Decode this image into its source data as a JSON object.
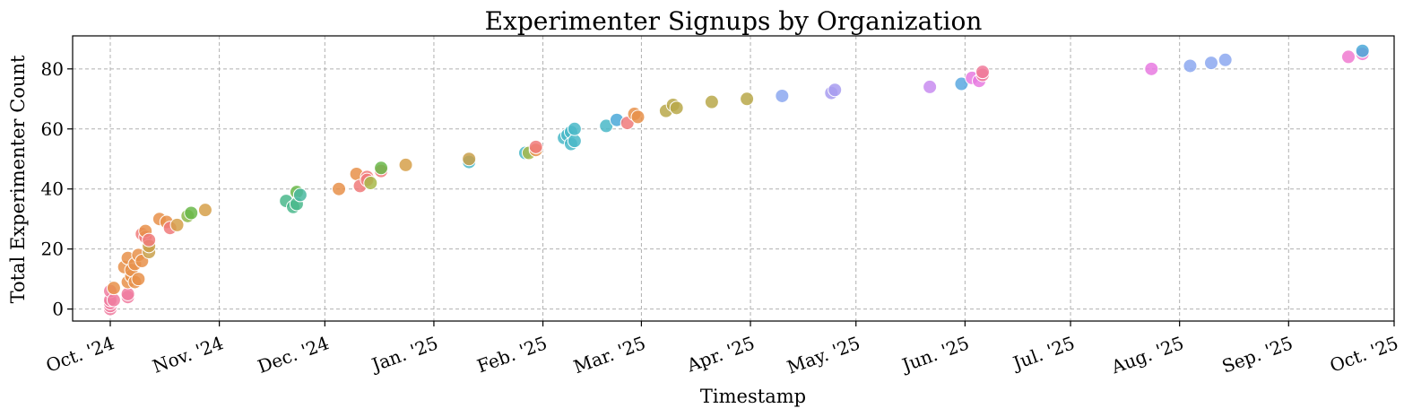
{
  "chart_data": {
    "type": "scatter",
    "title": "Experimenter Signups by Organization",
    "xlabel": "Timestamp",
    "ylabel": "Total Experimenter Count",
    "x_range": [
      "2024-10-01",
      "2025-10-01"
    ],
    "ylim": [
      -4,
      91
    ],
    "x_ticks": [
      {
        "date": "2024-10-01",
        "label": "Oct. '24"
      },
      {
        "date": "2024-11-01",
        "label": "Nov. '24"
      },
      {
        "date": "2024-12-01",
        "label": "Dec. '24"
      },
      {
        "date": "2025-01-01",
        "label": "Jan. '25"
      },
      {
        "date": "2025-02-01",
        "label": "Feb. '25"
      },
      {
        "date": "2025-03-01",
        "label": "Mar. '25"
      },
      {
        "date": "2025-04-01",
        "label": "Apr. '25"
      },
      {
        "date": "2025-05-01",
        "label": "May. '25"
      },
      {
        "date": "2025-06-01",
        "label": "Jun. '25"
      },
      {
        "date": "2025-07-01",
        "label": "Jul. '25"
      },
      {
        "date": "2025-08-01",
        "label": "Aug. '25"
      },
      {
        "date": "2025-09-01",
        "label": "Sep. '25"
      },
      {
        "date": "2025-10-01",
        "label": "Oct. '25"
      }
    ],
    "y_ticks": [
      0,
      20,
      40,
      60,
      80
    ],
    "grid": true,
    "legend": "none",
    "points": [
      {
        "x": "2024-10-01",
        "y": 0,
        "color": "#f07ca0"
      },
      {
        "x": "2024-10-01",
        "y": 1,
        "color": "#f07ca0"
      },
      {
        "x": "2024-10-01",
        "y": 2,
        "color": "#f07ca0"
      },
      {
        "x": "2024-10-01",
        "y": 3,
        "color": "#f07ca0"
      },
      {
        "x": "2024-10-01",
        "y": 6,
        "color": "#f07ca0"
      },
      {
        "x": "2024-10-02",
        "y": 3,
        "color": "#f07ca0"
      },
      {
        "x": "2024-10-02",
        "y": 7,
        "color": "#e8914a"
      },
      {
        "x": "2024-10-05",
        "y": 14,
        "color": "#e8914a"
      },
      {
        "x": "2024-10-06",
        "y": 4,
        "color": "#f07ca0"
      },
      {
        "x": "2024-10-06",
        "y": 5,
        "color": "#f07ca0"
      },
      {
        "x": "2024-10-06",
        "y": 9,
        "color": "#e8914a"
      },
      {
        "x": "2024-10-06",
        "y": 17,
        "color": "#e8914a"
      },
      {
        "x": "2024-10-07",
        "y": 11,
        "color": "#e8914a"
      },
      {
        "x": "2024-10-07",
        "y": 13,
        "color": "#e8914a"
      },
      {
        "x": "2024-10-08",
        "y": 9,
        "color": "#e8914a"
      },
      {
        "x": "2024-10-08",
        "y": 15,
        "color": "#e8914a"
      },
      {
        "x": "2024-10-09",
        "y": 10,
        "color": "#e8914a"
      },
      {
        "x": "2024-10-09",
        "y": 18,
        "color": "#e8914a"
      },
      {
        "x": "2024-10-10",
        "y": 16,
        "color": "#e8914a"
      },
      {
        "x": "2024-10-10",
        "y": 25,
        "color": "#f07a7a"
      },
      {
        "x": "2024-10-11",
        "y": 24,
        "color": "#f07a7a"
      },
      {
        "x": "2024-10-11",
        "y": 26,
        "color": "#e8914a"
      },
      {
        "x": "2024-10-12",
        "y": 19,
        "color": "#c9a04a"
      },
      {
        "x": "2024-10-12",
        "y": 21,
        "color": "#c9a04a"
      },
      {
        "x": "2024-10-12",
        "y": 23,
        "color": "#f07a7a"
      },
      {
        "x": "2024-10-15",
        "y": 30,
        "color": "#e8914a"
      },
      {
        "x": "2024-10-17",
        "y": 29,
        "color": "#e8914a"
      },
      {
        "x": "2024-10-18",
        "y": 27,
        "color": "#f07a7a"
      },
      {
        "x": "2024-10-20",
        "y": 28,
        "color": "#d6a04a"
      },
      {
        "x": "2024-10-23",
        "y": 31,
        "color": "#8cb84a"
      },
      {
        "x": "2024-10-24",
        "y": 32,
        "color": "#6ab84a"
      },
      {
        "x": "2024-10-28",
        "y": 33,
        "color": "#d6a04a"
      },
      {
        "x": "2024-11-20",
        "y": 36,
        "color": "#4ab88c"
      },
      {
        "x": "2024-11-22",
        "y": 34,
        "color": "#4ab88c"
      },
      {
        "x": "2024-11-23",
        "y": 39,
        "color": "#6ab84a"
      },
      {
        "x": "2024-11-23",
        "y": 35,
        "color": "#4ab88c"
      },
      {
        "x": "2024-11-24",
        "y": 38,
        "color": "#4ab8a0"
      },
      {
        "x": "2024-12-05",
        "y": 40,
        "color": "#e8914a"
      },
      {
        "x": "2024-12-10",
        "y": 45,
        "color": "#e8914a"
      },
      {
        "x": "2024-12-11",
        "y": 41,
        "color": "#f07a7a"
      },
      {
        "x": "2024-12-13",
        "y": 44,
        "color": "#f07a7a"
      },
      {
        "x": "2024-12-13",
        "y": 43,
        "color": "#f07a7a"
      },
      {
        "x": "2024-12-14",
        "y": 42,
        "color": "#a8b84a"
      },
      {
        "x": "2024-12-17",
        "y": 46,
        "color": "#f07a7a"
      },
      {
        "x": "2024-12-17",
        "y": 47,
        "color": "#6ab84a"
      },
      {
        "x": "2024-12-24",
        "y": 48,
        "color": "#d6a04a"
      },
      {
        "x": "2025-01-11",
        "y": 49,
        "color": "#4ab8c8"
      },
      {
        "x": "2025-01-11",
        "y": 50,
        "color": "#c9a04a"
      },
      {
        "x": "2025-01-27",
        "y": 52,
        "color": "#4ab8c8"
      },
      {
        "x": "2025-01-28",
        "y": 52,
        "color": "#a8b84a"
      },
      {
        "x": "2025-01-30",
        "y": 53,
        "color": "#e8914a"
      },
      {
        "x": "2025-01-30",
        "y": 54,
        "color": "#f07a7a"
      },
      {
        "x": "2025-02-07",
        "y": 57,
        "color": "#4ab8c8"
      },
      {
        "x": "2025-02-08",
        "y": 58,
        "color": "#4ab8c8"
      },
      {
        "x": "2025-02-09",
        "y": 59,
        "color": "#4ab8c8"
      },
      {
        "x": "2025-02-09",
        "y": 55,
        "color": "#4ab8c8"
      },
      {
        "x": "2025-02-10",
        "y": 56,
        "color": "#4ab8c8"
      },
      {
        "x": "2025-02-10",
        "y": 60,
        "color": "#4ab8c8"
      },
      {
        "x": "2025-02-19",
        "y": 61,
        "color": "#4ab8c8"
      },
      {
        "x": "2025-02-22",
        "y": 63,
        "color": "#4aa8d8"
      },
      {
        "x": "2025-02-25",
        "y": 62,
        "color": "#f07a7a"
      },
      {
        "x": "2025-02-27",
        "y": 65,
        "color": "#e8914a"
      },
      {
        "x": "2025-02-28",
        "y": 64,
        "color": "#e8914a"
      },
      {
        "x": "2025-03-08",
        "y": 66,
        "color": "#b8a84a"
      },
      {
        "x": "2025-03-10",
        "y": 68,
        "color": "#b8a84a"
      },
      {
        "x": "2025-03-11",
        "y": 67,
        "color": "#b8a84a"
      },
      {
        "x": "2025-03-21",
        "y": 69,
        "color": "#b8a84a"
      },
      {
        "x": "2025-03-31",
        "y": 70,
        "color": "#b8a84a"
      },
      {
        "x": "2025-04-10",
        "y": 71,
        "color": "#8ca8f0"
      },
      {
        "x": "2025-04-24",
        "y": 72,
        "color": "#a89cf0"
      },
      {
        "x": "2025-04-25",
        "y": 73,
        "color": "#a89cf0"
      },
      {
        "x": "2025-05-22",
        "y": 74,
        "color": "#c88cf0"
      },
      {
        "x": "2025-05-31",
        "y": 75,
        "color": "#5aa8e0"
      },
      {
        "x": "2025-06-03",
        "y": 77,
        "color": "#e87ae0"
      },
      {
        "x": "2025-06-05",
        "y": 76,
        "color": "#e87ae0"
      },
      {
        "x": "2025-06-06",
        "y": 78,
        "color": "#f07a9a"
      },
      {
        "x": "2025-06-06",
        "y": 79,
        "color": "#f07a9a"
      },
      {
        "x": "2025-07-24",
        "y": 80,
        "color": "#e87ae0"
      },
      {
        "x": "2025-08-04",
        "y": 81,
        "color": "#8ca8f0"
      },
      {
        "x": "2025-08-10",
        "y": 82,
        "color": "#8ca8f0"
      },
      {
        "x": "2025-08-14",
        "y": 83,
        "color": "#8ca8f0"
      },
      {
        "x": "2025-09-18",
        "y": 84,
        "color": "#f07ad0"
      },
      {
        "x": "2025-09-22",
        "y": 85,
        "color": "#f07ad0"
      },
      {
        "x": "2025-09-22",
        "y": 86,
        "color": "#4aa8d8"
      }
    ]
  }
}
